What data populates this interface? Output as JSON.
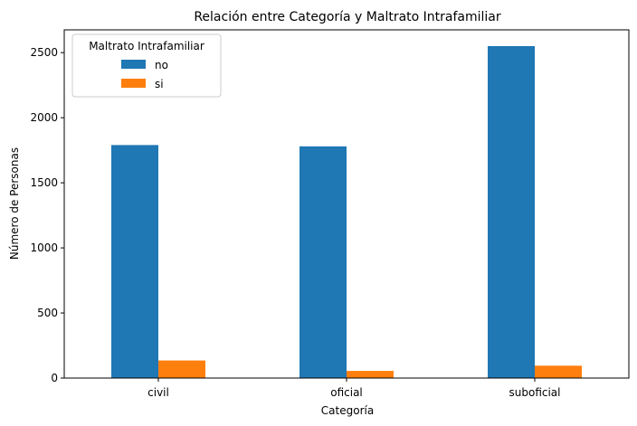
{
  "chart_data": {
    "type": "bar",
    "title": "Relación entre Categoría y Maltrato Intrafamiliar",
    "xlabel": "Categoría",
    "ylabel": "Número de Personas",
    "categories": [
      "civil",
      "oficial",
      "suboficial"
    ],
    "series": [
      {
        "name": "no",
        "color": "#1f77b4",
        "values": [
          1790,
          1780,
          2550
        ]
      },
      {
        "name": "si",
        "color": "#ff7f0e",
        "values": [
          135,
          55,
          95
        ]
      }
    ],
    "ylim": [
      0,
      2675
    ],
    "yticks": [
      0,
      500,
      1000,
      1500,
      2000,
      2500
    ],
    "legend": {
      "title": "Maltrato Intrafamiliar",
      "placement": "top-left"
    },
    "grid": false
  }
}
